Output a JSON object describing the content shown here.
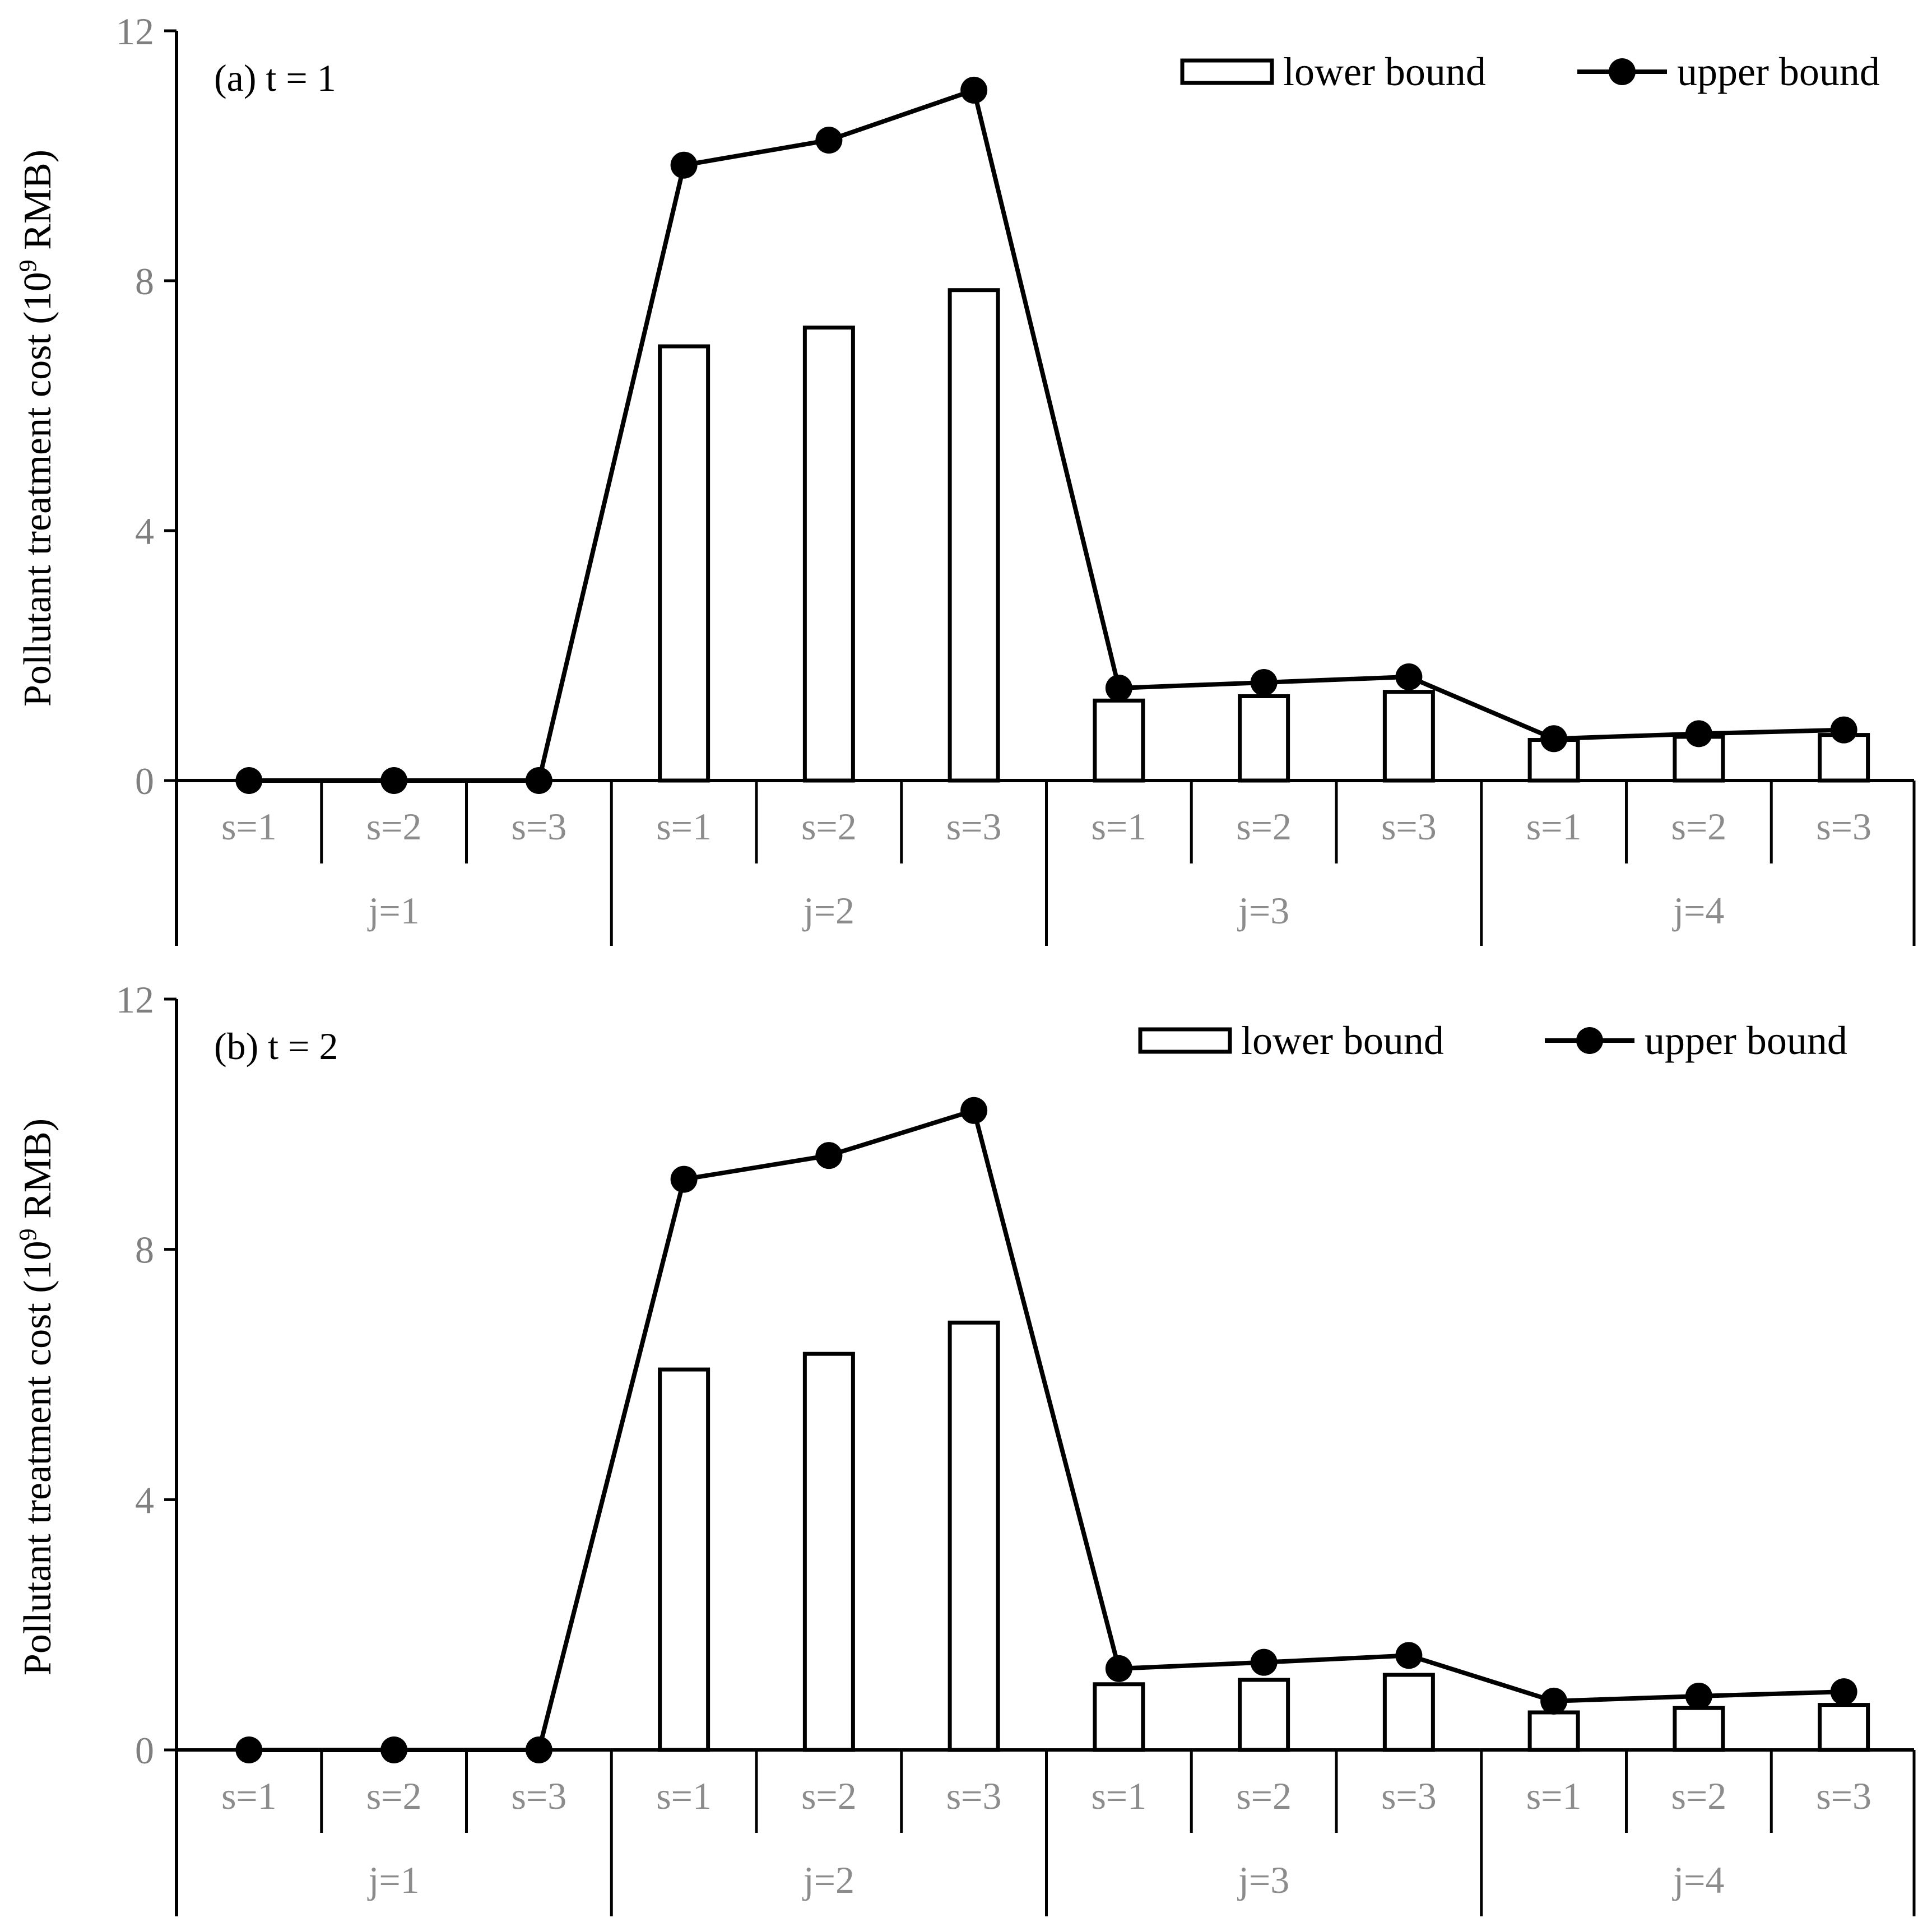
{
  "figure": {
    "colors": {
      "axis": "#000000",
      "bar_fill": "#ffffff",
      "bar_stroke": "#000000",
      "line": "#000000",
      "tick_text": "#7f7f7f",
      "category_text": "#8c8c8c"
    },
    "legend": {
      "lower_label": "lower bound",
      "upper_label": "upper bound"
    },
    "y_title": {
      "main": "Pollutant treatment cost (10",
      "sup": "9",
      "tail": " RMB)"
    }
  },
  "chart_data": [
    {
      "type": "bar",
      "panel_label": "(a) t = 1",
      "categories": [
        "s=1",
        "s=2",
        "s=3",
        "s=1",
        "s=2",
        "s=3",
        "s=1",
        "s=2",
        "s=3",
        "s=1",
        "s=2",
        "s=3"
      ],
      "groups": [
        "j=1",
        "j=2",
        "j=3",
        "j=4"
      ],
      "ylim": [
        0,
        12
      ],
      "yticks": [
        "0",
        "4",
        "8",
        "12"
      ],
      "ylabel": "Pollutant treatment cost (10^9 RMB)",
      "series": [
        {
          "name": "lower bound",
          "kind": "bar",
          "values": [
            0,
            0,
            0,
            6.95,
            7.25,
            7.85,
            1.28,
            1.35,
            1.42,
            0.65,
            0.7,
            0.73
          ]
        },
        {
          "name": "upper bound",
          "kind": "line-markers",
          "values": [
            0,
            0,
            0,
            9.85,
            10.25,
            11.05,
            1.48,
            1.57,
            1.66,
            0.67,
            0.75,
            0.81
          ]
        }
      ]
    },
    {
      "type": "bar",
      "panel_label": "(b) t = 2",
      "categories": [
        "s=1",
        "s=2",
        "s=3",
        "s=1",
        "s=2",
        "s=3",
        "s=1",
        "s=2",
        "s=3",
        "s=1",
        "s=2",
        "s=3"
      ],
      "groups": [
        "j=1",
        "j=2",
        "j=3",
        "j=4"
      ],
      "ylim": [
        0,
        12
      ],
      "yticks": [
        "0",
        "4",
        "8",
        "12"
      ],
      "ylabel": "Pollutant treatment cost (10^9 RMB)",
      "series": [
        {
          "name": "lower bound",
          "kind": "bar",
          "values": [
            0,
            0,
            0,
            6.08,
            6.33,
            6.83,
            1.05,
            1.12,
            1.2,
            0.6,
            0.67,
            0.72
          ]
        },
        {
          "name": "upper bound",
          "kind": "line-markers",
          "values": [
            0,
            0,
            0,
            9.12,
            9.5,
            10.22,
            1.3,
            1.4,
            1.51,
            0.78,
            0.86,
            0.93
          ]
        }
      ]
    }
  ]
}
